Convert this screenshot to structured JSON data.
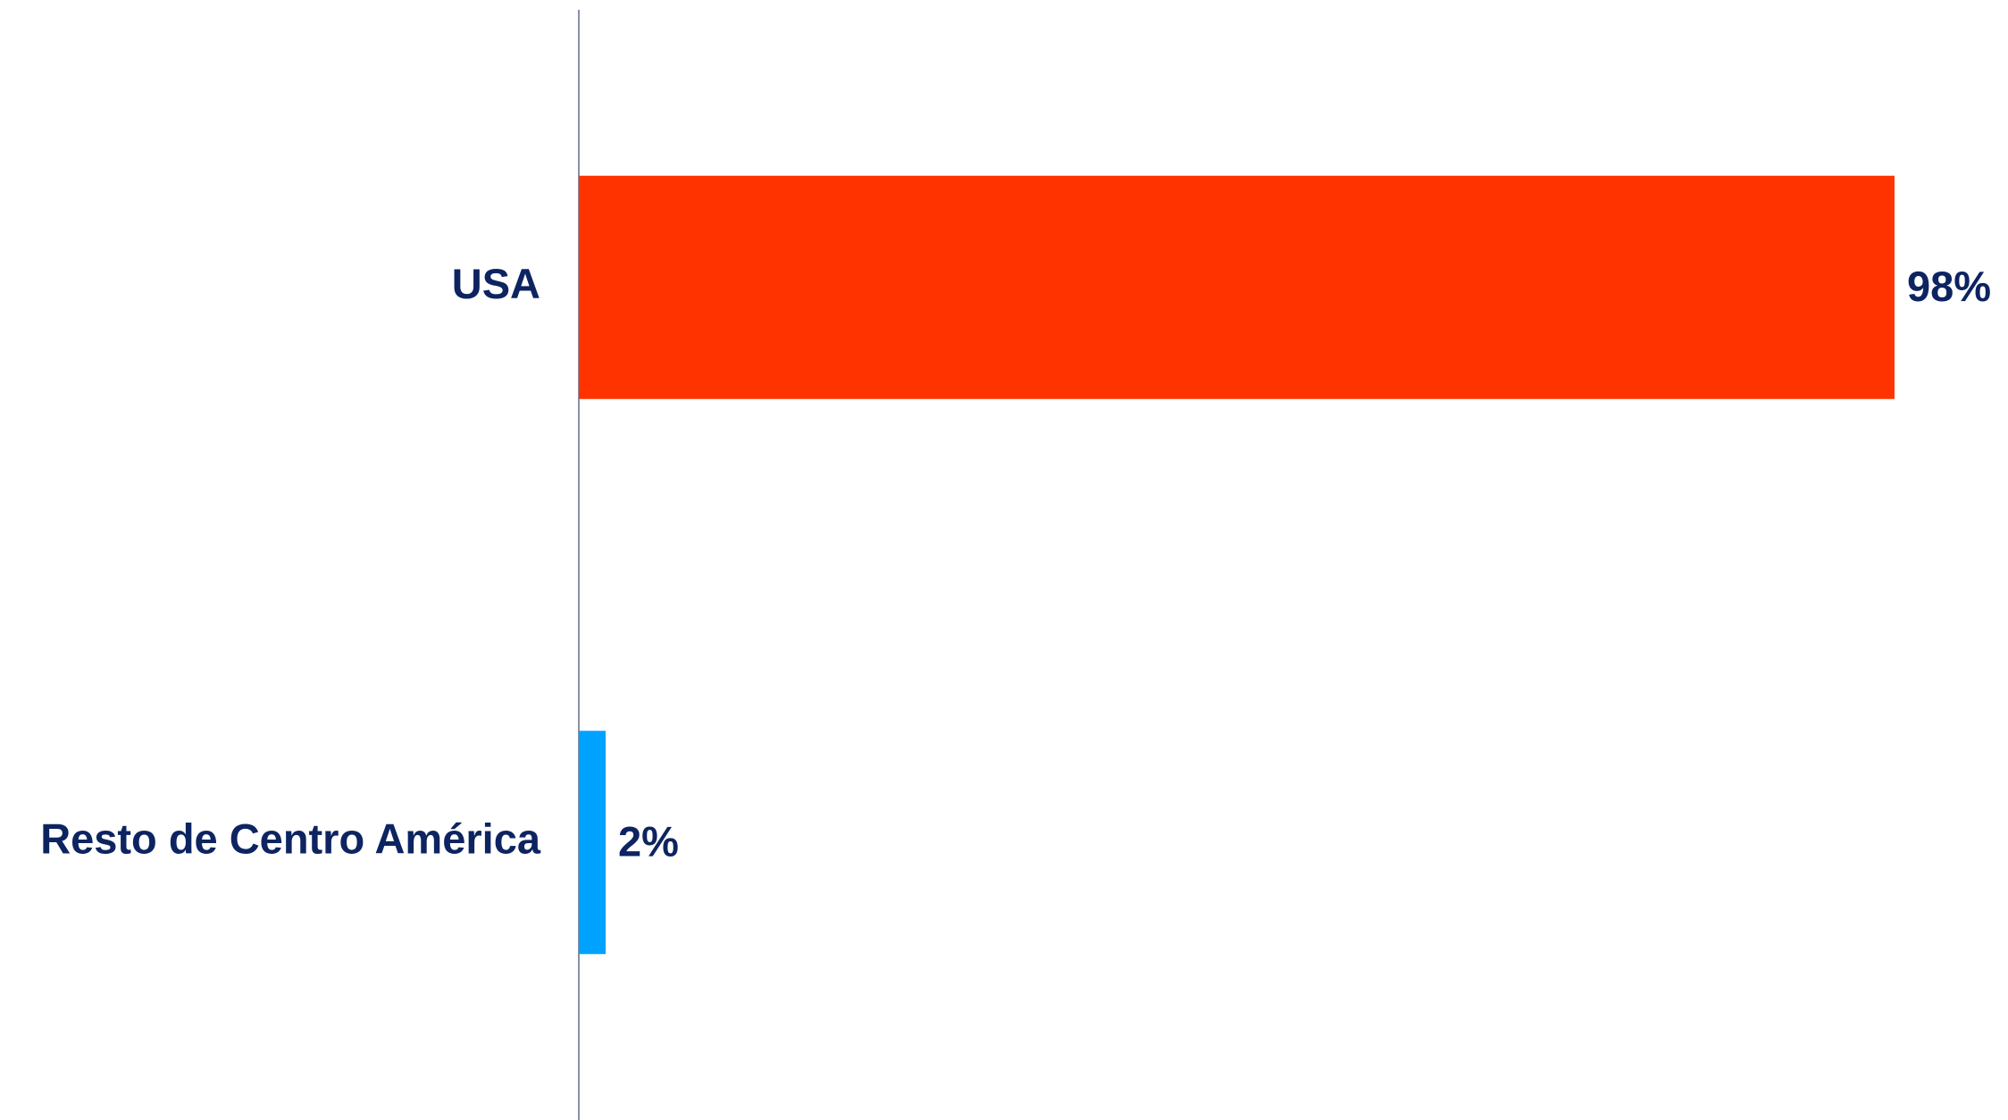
{
  "chart_data": {
    "type": "hbar",
    "categories": [
      "USA",
      "Resto de Centro América"
    ],
    "values": [
      98,
      2
    ],
    "value_labels": [
      "98%",
      "2%"
    ],
    "colors": [
      "#ff3300",
      "#00a2ff"
    ],
    "xlim": [
      0,
      100
    ]
  }
}
